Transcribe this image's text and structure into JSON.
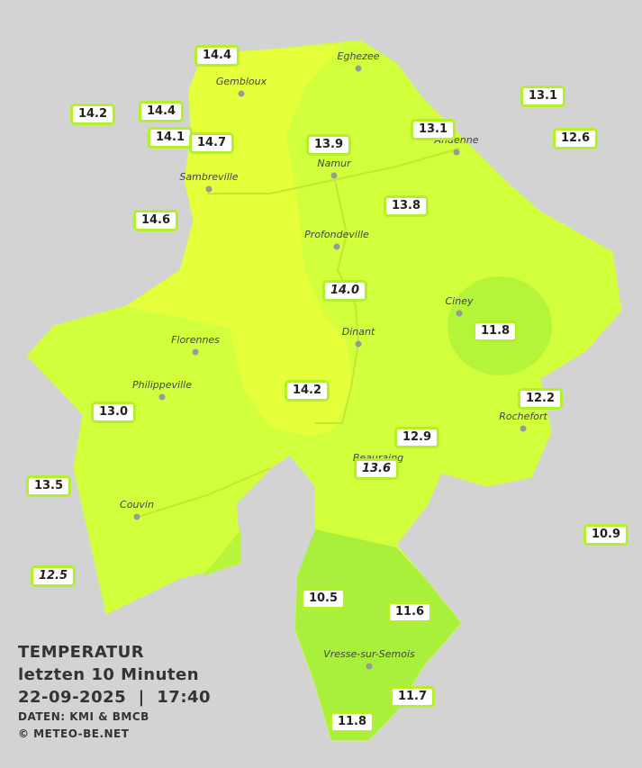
{
  "legend": {
    "title": "TEMPERATUR",
    "period": "letzten 10 Minuten",
    "datetime": "22-09-2025  |  17:40",
    "source": "DATEN: KMI & BMCB",
    "copyright": "© METEO-BE.NET"
  },
  "cities": [
    "Eghezee",
    "Gembloux",
    "Andenne",
    "Namur",
    "Sambreville",
    "Profondeville",
    "Ciney",
    "Dinant",
    "Florennes",
    "Philippeville",
    "Rochefort",
    "Beauraing",
    "Couvin",
    "Vresse-sur-Semois"
  ],
  "stations": [
    {
      "label": "14.4"
    },
    {
      "label": "14.2"
    },
    {
      "label": "14.4"
    },
    {
      "label": "14.1"
    },
    {
      "label": "14.7"
    },
    {
      "label": "13.9"
    },
    {
      "label": "13.1"
    },
    {
      "label": "13.1"
    },
    {
      "label": "12.6"
    },
    {
      "label": "14.6"
    },
    {
      "label": "13.8"
    },
    {
      "label": "14.0",
      "italic": true
    },
    {
      "label": "11.8"
    },
    {
      "label": "14.2"
    },
    {
      "label": "12.2"
    },
    {
      "label": "13.0"
    },
    {
      "label": "12.9"
    },
    {
      "label": "13.6",
      "italic": true
    },
    {
      "label": "13.5"
    },
    {
      "label": "10.9"
    },
    {
      "label": "12.5",
      "italic": true
    },
    {
      "label": "10.5"
    },
    {
      "label": "11.6"
    },
    {
      "label": "11.7"
    },
    {
      "label": "11.8"
    }
  ]
}
